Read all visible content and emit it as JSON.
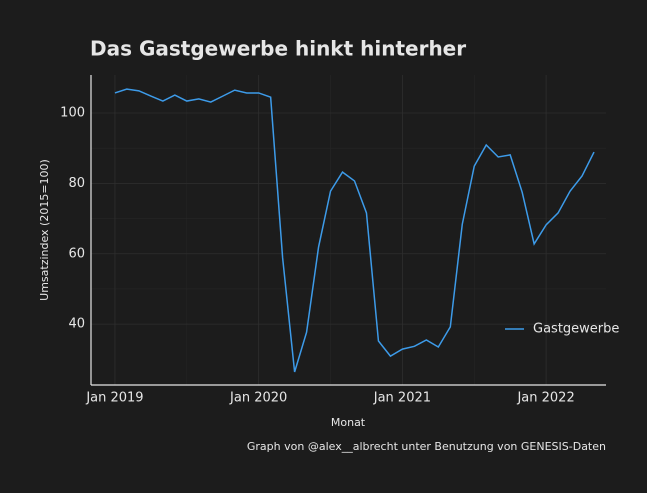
{
  "chart_data": {
    "type": "line",
    "title": "Das Gastgewerbe hinkt hinterher",
    "x_label": "Monat",
    "y_label": "Umsatzindex (2015=100)",
    "caption": "Graph von @alex__albrecht unter Benutzung von GENESIS-Daten",
    "x": [
      "2019-01",
      "2019-02",
      "2019-03",
      "2019-04",
      "2019-05",
      "2019-06",
      "2019-07",
      "2019-08",
      "2019-09",
      "2019-10",
      "2019-11",
      "2019-12",
      "2020-01",
      "2020-02",
      "2020-03",
      "2020-04",
      "2020-05",
      "2020-06",
      "2020-07",
      "2020-08",
      "2020-09",
      "2020-10",
      "2020-11",
      "2020-12",
      "2021-01",
      "2021-02",
      "2021-03",
      "2021-04",
      "2021-05",
      "2021-06",
      "2021-07",
      "2021-08",
      "2021-09",
      "2021-10",
      "2021-11",
      "2021-12",
      "2022-01",
      "2022-02",
      "2022-03",
      "2022-04",
      "2022-05"
    ],
    "series": [
      {
        "name": "Gastgewerbe",
        "color": "#3d9be9",
        "values": [
          105.7,
          106.8,
          106.3,
          104.8,
          103.4,
          105.1,
          103.4,
          104,
          103.1,
          104.8,
          106.5,
          105.7,
          105.7,
          104.5,
          58.8,
          26.4,
          37.7,
          61.9,
          77.8,
          83.2,
          80.7,
          71.6,
          35.2,
          30.9,
          32.9,
          33.7,
          35.5,
          33.5,
          39.2,
          68.4,
          84.9,
          90.9,
          87.5,
          88.1,
          77.5,
          62.8,
          68.2,
          71.6,
          77.8,
          82.1,
          88.9
        ]
      }
    ],
    "xlim": [
      "2018-11",
      "2022-06"
    ],
    "xticks": [
      {
        "value": "2019-01",
        "label": "Jan 2019"
      },
      {
        "value": "2020-01",
        "label": "Jan 2020"
      },
      {
        "value": "2021-01",
        "label": "Jan 2021"
      },
      {
        "value": "2022-01",
        "label": "Jan 2022"
      }
    ],
    "ylim": [
      22.7,
      110.8
    ],
    "yticks": [
      40,
      60,
      80,
      100
    ],
    "grid": true,
    "legend": "right"
  }
}
